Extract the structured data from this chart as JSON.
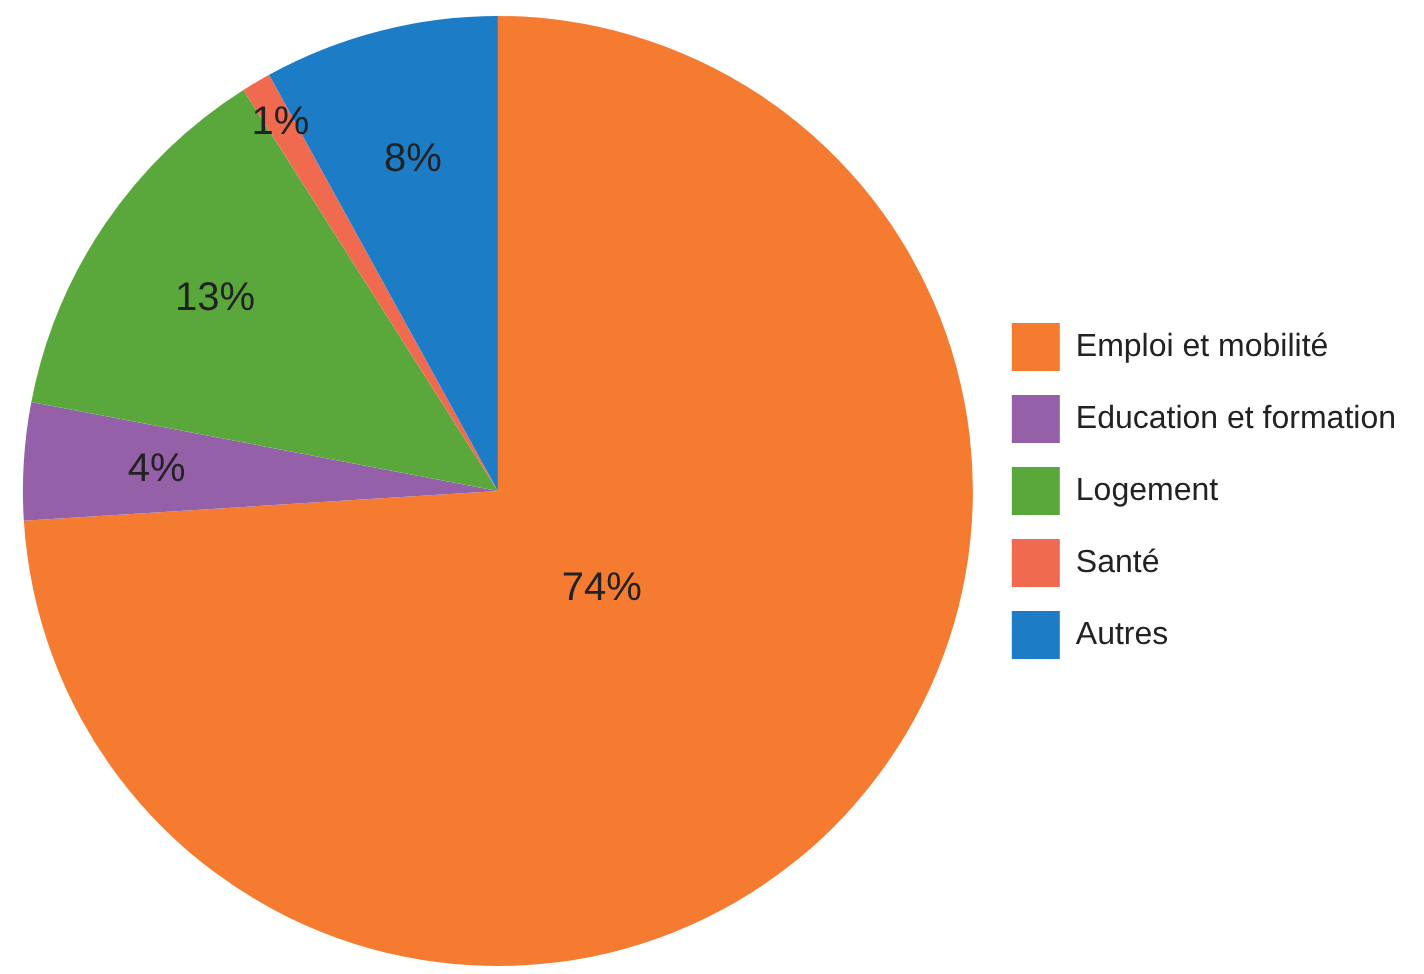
{
  "chart_data": {
    "type": "pie",
    "categories": [
      "Emploi et mobilité",
      "Education et formation",
      "Logement",
      "Santé",
      "Autres"
    ],
    "values": [
      74,
      4,
      13,
      1,
      8
    ],
    "colors": [
      "#f47b30",
      "#9460a8",
      "#5aa83c",
      "#f06a4f",
      "#1c7cc6"
    ],
    "value_labels": [
      "74%",
      "4%",
      "13%",
      "1%",
      "8%"
    ],
    "legend": "right"
  }
}
